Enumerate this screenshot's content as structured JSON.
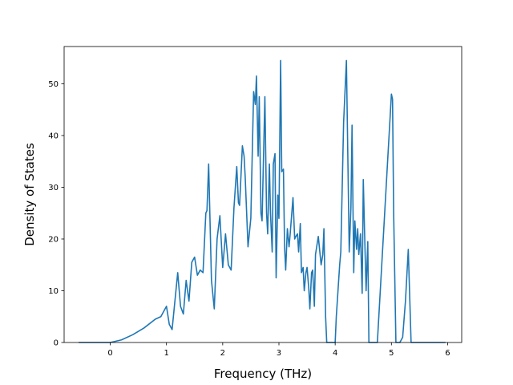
{
  "chart_data": {
    "type": "line",
    "title": "",
    "xlabel": "Frequency (THz)",
    "ylabel": "Density of States",
    "xlim": [
      -0.82,
      6.25
    ],
    "ylim": [
      0,
      57.2
    ],
    "xticks": [
      "0",
      "1",
      "2",
      "3",
      "4",
      "5",
      "6"
    ],
    "yticks": [
      "0",
      "10",
      "20",
      "30",
      "40",
      "50"
    ],
    "grid": false,
    "legend": "none",
    "line_color": "#1f77b4",
    "series": [
      {
        "x": [
          -0.55,
          0.0,
          0.2,
          0.4,
          0.6,
          0.8,
          0.9,
          1.0,
          1.05,
          1.1,
          1.15,
          1.2,
          1.25,
          1.3,
          1.35,
          1.4,
          1.45,
          1.5,
          1.55,
          1.6,
          1.65,
          1.7,
          1.72,
          1.75,
          1.8,
          1.85,
          1.9,
          1.95,
          2.0,
          2.05,
          2.1,
          2.15,
          2.2,
          2.25,
          2.28,
          2.3,
          2.35,
          2.38,
          2.4,
          2.45,
          2.5,
          2.55,
          2.58,
          2.6,
          2.63,
          2.65,
          2.68,
          2.7,
          2.75,
          2.78,
          2.8,
          2.83,
          2.85,
          2.88,
          2.9,
          2.93,
          2.95,
          2.98,
          3.0,
          3.03,
          3.05,
          3.08,
          3.1,
          3.12,
          3.15,
          3.18,
          3.2,
          3.25,
          3.28,
          3.3,
          3.33,
          3.35,
          3.38,
          3.4,
          3.43,
          3.45,
          3.48,
          3.5,
          3.53,
          3.55,
          3.58,
          3.6,
          3.63,
          3.65,
          3.7,
          3.75,
          3.78,
          3.8,
          3.83,
          3.85,
          3.88,
          3.9,
          3.95,
          3.98,
          4.0,
          4.02,
          4.05,
          4.08,
          4.1,
          4.15,
          4.2,
          4.25,
          4.28,
          4.3,
          4.33,
          4.35,
          4.38,
          4.4,
          4.42,
          4.45,
          4.48,
          4.5,
          4.52,
          4.55,
          4.58,
          4.6,
          4.63,
          4.65,
          4.68,
          4.7,
          4.72,
          4.75,
          5.0,
          5.02,
          5.04,
          5.08,
          5.12,
          5.15,
          5.2,
          5.25,
          5.3,
          5.35,
          5.38,
          5.4,
          5.5,
          5.95
        ],
        "y": [
          0,
          0,
          0.5,
          1.5,
          2.8,
          4.5,
          5.0,
          7.0,
          3.5,
          2.5,
          8.0,
          13.5,
          7.0,
          5.5,
          12.0,
          8.0,
          15.5,
          16.5,
          13.0,
          14.0,
          13.5,
          25.0,
          25.5,
          34.5,
          12.0,
          6.5,
          20.0,
          24.5,
          14.5,
          21.0,
          15.0,
          14.0,
          26.0,
          34.0,
          27.0,
          26.5,
          38.0,
          36.0,
          32.0,
          18.5,
          24.0,
          48.5,
          46.0,
          51.5,
          36.0,
          47.5,
          25.0,
          23.5,
          47.5,
          25.0,
          21.0,
          34.5,
          25.0,
          17.5,
          34.5,
          36.5,
          12.5,
          28.5,
          24.0,
          54.5,
          33.0,
          33.5,
          18.5,
          14.0,
          22.0,
          18.5,
          21.0,
          28.0,
          20.0,
          20.5,
          21.0,
          17.5,
          23.0,
          13.5,
          14.5,
          10.0,
          13.5,
          14.5,
          10.5,
          6.5,
          13.5,
          14.0,
          7.0,
          17.0,
          20.5,
          15.0,
          17.0,
          22.0,
          5.0,
          0,
          0,
          0,
          0,
          0,
          0,
          5.0,
          10.0,
          15.0,
          17.5,
          42.5,
          54.5,
          17.5,
          26.0,
          42.0,
          13.5,
          23.5,
          18.0,
          22.0,
          17.0,
          21.0,
          9.5,
          31.5,
          22.5,
          10.0,
          19.5,
          0,
          0,
          0,
          0,
          0,
          0,
          0,
          48.0,
          47.0,
          25.0,
          0,
          0,
          0,
          1.0,
          8.0,
          18.0,
          0,
          0,
          0,
          0,
          0
        ]
      }
    ]
  }
}
